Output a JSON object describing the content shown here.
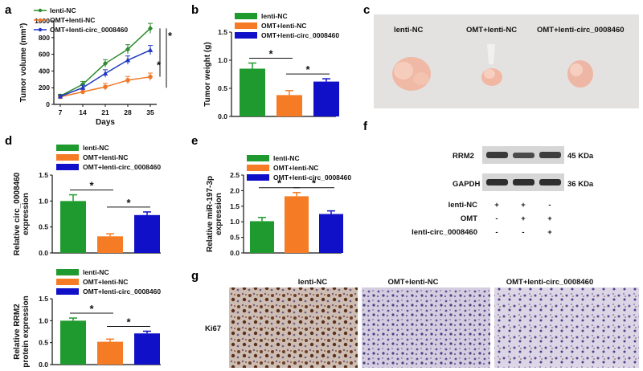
{
  "panels": {
    "a": {
      "letter": "a",
      "chart_data": {
        "type": "line",
        "ylabel": "Tumor volume (mm³)",
        "xlabel": "Days",
        "x": [
          7,
          14,
          21,
          28,
          35
        ],
        "xlim": [
          7,
          35
        ],
        "ylim": [
          0,
          1000
        ],
        "yticks": [
          0,
          200,
          400,
          600,
          800,
          1000
        ],
        "series": [
          {
            "name": "lenti-NC",
            "color": "#2e8b2e",
            "marker": "diamond",
            "values": [
              100,
              240,
              490,
              660,
              910
            ],
            "errors": [
              20,
              35,
              45,
              55,
              60
            ]
          },
          {
            "name": "OMT+lenti-NC",
            "color": "#f07828",
            "marker": "circle",
            "values": [
              90,
              150,
              210,
              290,
              330
            ],
            "errors": [
              15,
              30,
              40,
              45,
              45
            ]
          },
          {
            "name": "OMT+lenti-circ_0008460",
            "color": "#2038c0",
            "marker": "triangle",
            "values": [
              95,
              200,
              370,
              530,
              650
            ],
            "errors": [
              15,
              30,
              45,
              50,
              55
            ]
          }
        ],
        "annotations": [
          "*",
          "*"
        ],
        "legend": "top-left"
      }
    },
    "b": {
      "letter": "b",
      "chart_data": {
        "type": "bar",
        "ylabel": "Tumor weight (g)",
        "categories": [
          "lenti-NC",
          "OMT+lenti-NC",
          "OMT+lenti-circ_0008460"
        ],
        "values": [
          0.85,
          0.38,
          0.62
        ],
        "errors": [
          0.1,
          0.08,
          0.05
        ],
        "colors": [
          "#1f9a2e",
          "#f57c25",
          "#1010c8"
        ],
        "ylim": [
          0,
          1.5
        ],
        "yticks": [
          "0.0",
          "0.5",
          "1.0",
          "1.5"
        ],
        "annotations": [
          "*",
          "*"
        ],
        "legend": "top"
      }
    },
    "c": {
      "letter": "c",
      "labels": [
        "lenti-NC",
        "OMT+lenti-NC",
        "OMT+lenti-circ_0008460"
      ]
    },
    "d": {
      "letter": "d",
      "charts": [
        {
          "type": "bar",
          "ylabel_lines": [
            "Relative circ_0008460",
            "expression"
          ],
          "categories": [
            "lenti-NC",
            "OMT+lenti-NC",
            "OMT+lenti-circ_0008460"
          ],
          "values": [
            1.0,
            0.32,
            0.73
          ],
          "errors": [
            0.12,
            0.05,
            0.06
          ],
          "colors": [
            "#1f9a2e",
            "#f57c25",
            "#1010c8"
          ],
          "ylim": [
            0,
            1.5
          ],
          "yticks": [
            "0.0",
            "0.5",
            "1.0",
            "1.5"
          ],
          "annotations": [
            "*",
            "*"
          ]
        },
        {
          "type": "bar",
          "ylabel_lines": [
            "Relative RRM2",
            "protein expression"
          ],
          "categories": [
            "lenti-NC",
            "OMT+lenti-NC",
            "OMT+lenti-circ_0008460"
          ],
          "values": [
            1.0,
            0.52,
            0.71
          ],
          "errors": [
            0.06,
            0.06,
            0.05
          ],
          "colors": [
            "#1f9a2e",
            "#f57c25",
            "#1010c8"
          ],
          "ylim": [
            0,
            1.5
          ],
          "yticks": [
            "0.0",
            "0.5",
            "1.0",
            "1.5"
          ],
          "annotations": [
            "*",
            "*"
          ]
        }
      ]
    },
    "e": {
      "letter": "e",
      "chart_data": {
        "type": "bar",
        "ylabel_lines": [
          "Relative miR-197-3p",
          "expression"
        ],
        "categories": [
          "lenti-NC",
          "OMT+lenti-NC",
          "OMT+lenti-circ_0008460"
        ],
        "values": [
          1.02,
          1.82,
          1.25
        ],
        "errors": [
          0.12,
          0.12,
          0.1
        ],
        "colors": [
          "#1f9a2e",
          "#f57c25",
          "#1010c8"
        ],
        "ylim": [
          0,
          2.5
        ],
        "yticks": [
          "0.0",
          "0.5",
          "1.0",
          "1.5",
          "2.0",
          "2.5"
        ],
        "annotations": [
          "*",
          "*"
        ]
      }
    },
    "f": {
      "letter": "f",
      "bands": [
        {
          "name": "RRM2",
          "size": "45 KDa"
        },
        {
          "name": "GAPDH",
          "size": "36 KDa"
        }
      ],
      "conditions": [
        {
          "name": "lenti-NC",
          "values": [
            "+",
            "+",
            "-"
          ]
        },
        {
          "name": "OMT",
          "values": [
            "-",
            "+",
            "+"
          ]
        },
        {
          "name": "lenti-circ_0008460",
          "values": [
            "-",
            "-",
            "+"
          ]
        }
      ]
    },
    "g": {
      "letter": "g",
      "row_label": "Ki67",
      "column_labels": [
        "lenti-NC",
        "OMT+lenti-NC",
        "OMT+lenti-circ_0008460"
      ]
    }
  }
}
